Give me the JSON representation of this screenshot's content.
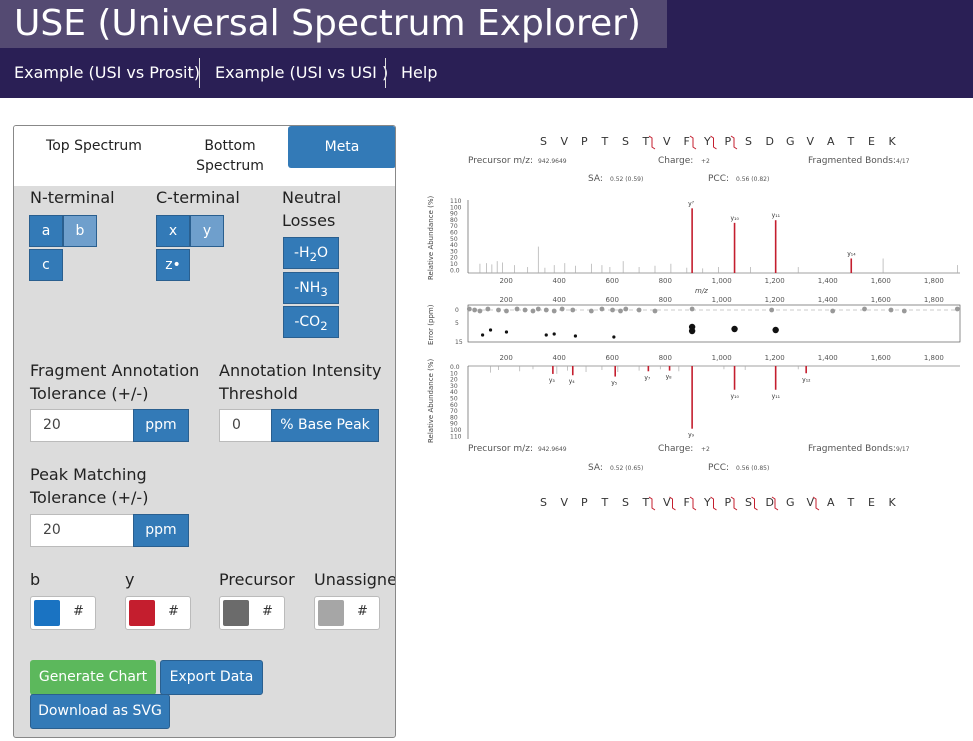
{
  "app": {
    "title": "USE (Universal Spectrum Explorer)"
  },
  "nav": [
    {
      "label": "Example (USI vs Prosit)"
    },
    {
      "label": "Example (USI vs USI )"
    },
    {
      "label": "Help"
    }
  ],
  "tabs": [
    {
      "label": "Top Spectrum",
      "active": false
    },
    {
      "label": "Bottom Spectrum",
      "active": false
    },
    {
      "label": "Meta",
      "active": true
    }
  ],
  "ions": {
    "n_label": "N-terminal",
    "c_label": "C-terminal",
    "neutral_label": "Neutral Losses",
    "a": "a",
    "b": "b",
    "c": "c",
    "x": "x",
    "y": "y",
    "z": "z•",
    "h2o": "-H2O",
    "nh3": "-NH3",
    "co2": "-CO2"
  },
  "fragment_tol": {
    "label": "Fragment Annotation Tolerance (+/-)",
    "value": "20",
    "unit": "ppm"
  },
  "intensity_thr": {
    "label": "Annotation Intensity Threshold",
    "value": "0",
    "unit": "% Base Peak"
  },
  "peak_tol": {
    "label": "Peak Matching Tolerance (+/-)",
    "value": "20",
    "unit": "ppm"
  },
  "colors": {
    "b_label": "b",
    "y_label": "y",
    "prec_label": "Precursor",
    "unassigned_label": "Unassigned",
    "hash": "#",
    "b": "#1a73c2",
    "y": "#c41e2e",
    "precursor": "#6b6b6b",
    "unassigned": "#a6a6a6"
  },
  "buttons": {
    "generate": "Generate Chart",
    "export": "Export Data",
    "download": "Download as SVG"
  },
  "chart": {
    "sequence": [
      "S",
      "V",
      "P",
      "T",
      "S",
      "T",
      "V",
      "F",
      "Y",
      "P",
      "S",
      "D",
      "G",
      "V",
      "A",
      "T",
      "E",
      "K"
    ],
    "top": {
      "precursor_label": "Precursor m/z:",
      "precursor": "942.9649",
      "charge_label": "Charge:",
      "charge": "+2",
      "bonds_label": "Fragmented Bonds:",
      "bonds": "4/17",
      "sa_label": "SA:",
      "sa": "0.52 (0.59)",
      "pcc_label": "PCC:",
      "pcc": "0.56 (0.82)"
    },
    "bottom": {
      "precursor_label": "Precursor m/z:",
      "precursor": "942.9649",
      "charge_label": "Charge:",
      "charge": "+2",
      "bonds_label": "Fragmented Bonds:",
      "bonds": "9/17",
      "sa_label": "SA:",
      "sa": "0.52 (0.65)",
      "pcc_label": "PCC:",
      "pcc": "0.56 (0.85)"
    },
    "axis": {
      "ylabel_top": "Relative Abundance (%)",
      "ylabel_err": "Error (ppm)",
      "ylabel_bot": "Relative Abundance (%)",
      "xlabel": "m/z",
      "x_ticks": [
        "200",
        "400",
        "600",
        "800",
        "1,000",
        "1,200",
        "1,400",
        "1,600",
        "1,800"
      ],
      "y_ticks_top": [
        "110",
        "100",
        "90",
        "80",
        "70",
        "60",
        "50",
        "40",
        "30",
        "20",
        "10",
        "0.0"
      ],
      "err_ticks": [
        "0",
        "5",
        "15"
      ],
      "y_ticks_bot": [
        "0.0",
        "10",
        "20",
        "30",
        "40",
        "50",
        "60",
        "70",
        "80",
        "90",
        "100",
        "110"
      ]
    },
    "top_labels": [
      "y⁷",
      "y₁₀",
      "y₁₁",
      "y₁₄"
    ],
    "bottom_labels": [
      "y₃",
      "y₄",
      "y₅",
      "y₇",
      "y₈",
      "y₉",
      "y₁₀",
      "y₁₁",
      "y₁₂"
    ]
  }
}
